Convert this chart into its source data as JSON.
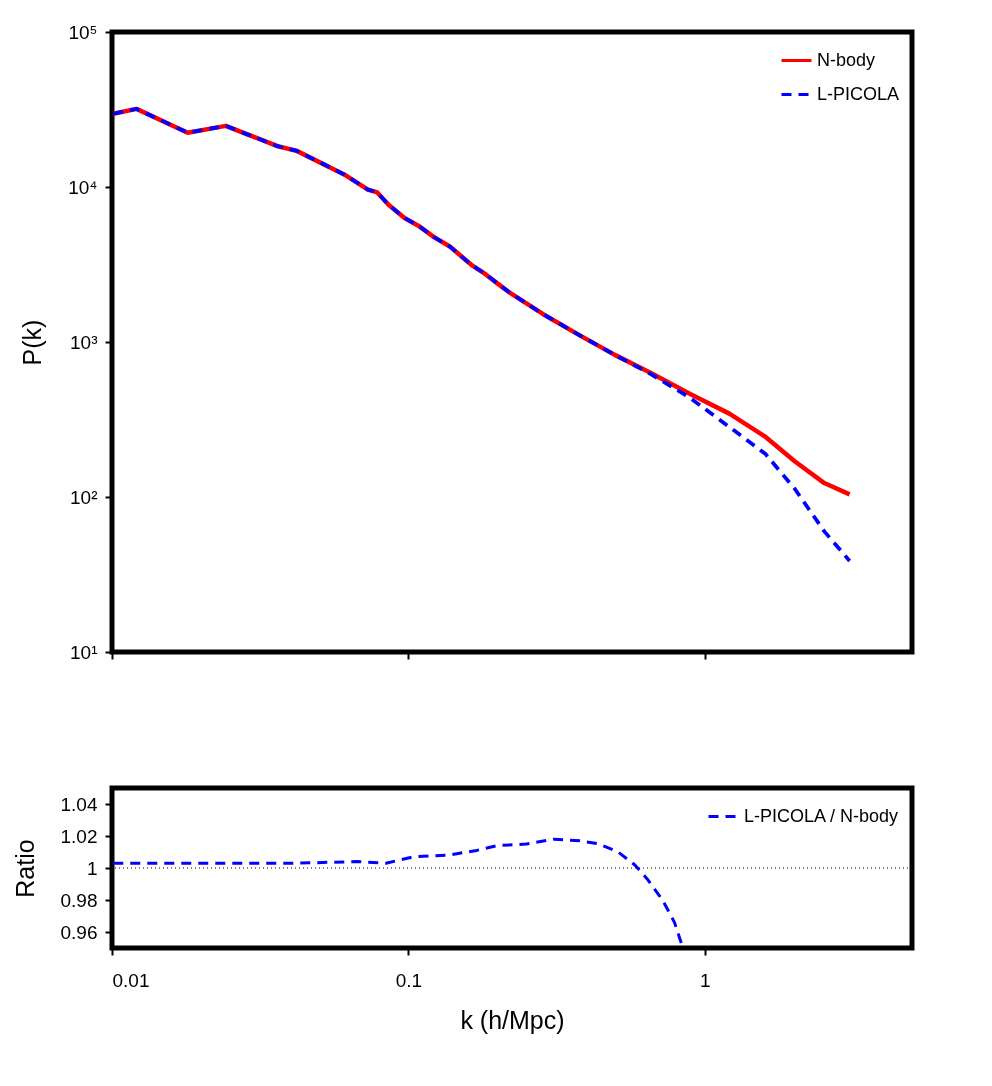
{
  "chart_data": [
    {
      "type": "line",
      "ylabel": "P(k)",
      "log": "xy",
      "legend": "top right",
      "tick_labels": "y",
      "xlim": [
        0.01,
        5
      ],
      "xticks": [
        0.01,
        0.1,
        1
      ],
      "ylim": [
        10,
        100000
      ],
      "yticks": [
        {
          "value": 10,
          "label": "10¹"
        },
        {
          "value": 100,
          "label": "10²"
        },
        {
          "value": 1000,
          "label": "10³"
        },
        {
          "value": 10000,
          "label": "10⁴"
        },
        {
          "value": 100000,
          "label": "10⁵"
        }
      ],
      "series": [
        {
          "name": "N-body",
          "color": "#ff0000",
          "line_style": "solid",
          "x": [
            0.0101,
            0.0121,
            0.018,
            0.0242,
            0.036,
            0.042,
            0.0607,
            0.073,
            0.0785,
            0.0857,
            0.097,
            0.108,
            0.122,
            0.138,
            0.163,
            0.182,
            0.2,
            0.221,
            0.284,
            0.376,
            0.497,
            0.658,
            0.889,
            1.21,
            1.6,
            2.01,
            2.53,
            3.08
          ],
          "values": [
            29700,
            31900,
            22400,
            24800,
            18400,
            17100,
            12050,
            9620,
            9220,
            7680,
            6310,
            5630,
            4750,
            4130,
            3150,
            2740,
            2380,
            2065,
            1517,
            1112,
            826,
            631,
            463,
            345,
            245,
            170,
            123,
            104
          ]
        },
        {
          "name": "L-PICOLA",
          "color": "#0000ff",
          "line_style": "dashed",
          "x": [
            0.0101,
            0.0121,
            0.018,
            0.0242,
            0.036,
            0.042,
            0.0607,
            0.073,
            0.0785,
            0.0857,
            0.097,
            0.108,
            0.122,
            0.138,
            0.163,
            0.182,
            0.2,
            0.221,
            0.284,
            0.376,
            0.497,
            0.658,
            0.889,
            1.21,
            1.6,
            2.01,
            2.53,
            3.08
          ],
          "values": [
            29700,
            31900,
            22400,
            24800,
            18400,
            17100,
            12050,
            9620,
            9220,
            7680,
            6310,
            5630,
            4750,
            4130,
            3150,
            2740,
            2380,
            2065,
            1517,
            1112,
            826,
            620,
            438,
            283,
            190,
            113,
            60,
            38.7
          ]
        }
      ]
    },
    {
      "type": "line",
      "xlabel": "k    (h/Mpc)",
      "ylabel": "Ratio",
      "log": "x",
      "legend": "top right",
      "xlim": [
        0.01,
        5
      ],
      "xticks": [
        0.01,
        0.1,
        1
      ],
      "ylim": [
        0.95,
        1.05
      ],
      "yticks": [
        0.96,
        0.98,
        1,
        1.02,
        1.04
      ],
      "ref_lines": [
        {
          "axis": "y",
          "value": 1,
          "color": "#000000",
          "line_style": "dotted"
        }
      ],
      "series": [
        {
          "name": "L-PICOLA / N-body",
          "color": "#0000ff",
          "line_style": "dashed",
          "x": [
            0.0101,
            0.0197,
            0.0416,
            0.067,
            0.084,
            0.104,
            0.136,
            0.17,
            0.2,
            0.25,
            0.31,
            0.38,
            0.44,
            0.51,
            0.58,
            0.64,
            0.72,
            0.79,
            0.84
          ],
          "values": [
            1.003,
            1.003,
            1.003,
            1.004,
            1.003,
            1.007,
            1.008,
            1.011,
            1.014,
            1.015,
            1.018,
            1.017,
            1.015,
            1.01,
            1.002,
            0.993,
            0.98,
            0.966,
            0.951
          ]
        }
      ]
    }
  ]
}
